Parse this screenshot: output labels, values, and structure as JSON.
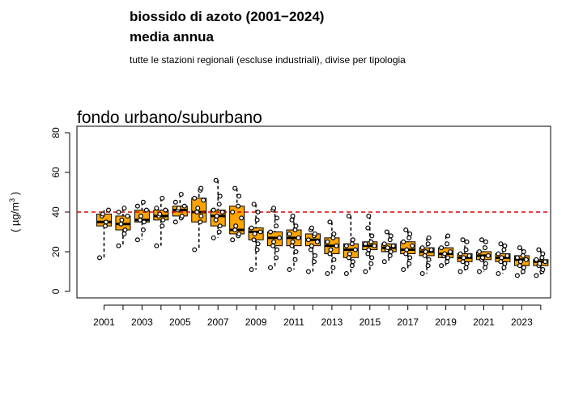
{
  "header": {
    "title": "biossido di azoto (2001−2024)",
    "subtitle": "media annua",
    "caption": "tutte le stazioni regionali (escluse industriali), divise per tipologia"
  },
  "chart_data": {
    "type": "boxplot",
    "title": "fondo urbano/suburbano",
    "xlabel": "",
    "ylabel_prefix": "( µg/m",
    "ylabel_sup": "3",
    "ylabel_suffix": " )",
    "ylim": [
      0,
      80
    ],
    "yticks": [
      0,
      20,
      40,
      60,
      80
    ],
    "xtick_labels": [
      "2001",
      "2003",
      "2005",
      "2007",
      "2009",
      "2011",
      "2013",
      "2015",
      "2017",
      "2019",
      "2021",
      "2023"
    ],
    "limit_value": 40,
    "colors": {
      "box": "#FFA500",
      "limit_line": "#DD0000",
      "point_fill": "#FFFFFF",
      "stroke": "#000000"
    },
    "grid": false,
    "years": [
      {
        "year": "2001",
        "q1": 33,
        "median": 35,
        "q3": 39,
        "wlow": 17,
        "whigh": 41,
        "points": [
          17,
          33,
          35,
          38,
          39,
          41
        ]
      },
      {
        "year": "2002",
        "q1": 31,
        "median": 34,
        "q3": 38,
        "wlow": 23,
        "whigh": 42,
        "points": [
          23,
          29,
          31,
          34,
          36,
          38,
          40,
          42
        ]
      },
      {
        "year": "2003",
        "q1": 35,
        "median": 36,
        "q3": 41,
        "wlow": 26,
        "whigh": 45,
        "points": [
          26,
          31,
          35,
          36,
          38,
          41,
          43,
          45
        ]
      },
      {
        "year": "2004",
        "q1": 36,
        "median": 38,
        "q3": 41,
        "wlow": 23,
        "whigh": 47,
        "points": [
          23,
          33,
          36,
          38,
          39,
          41,
          42,
          47
        ]
      },
      {
        "year": "2005",
        "q1": 38,
        "median": 41,
        "q3": 43,
        "wlow": 35,
        "whigh": 49,
        "points": [
          35,
          37,
          38,
          41,
          42,
          43,
          45,
          49
        ]
      },
      {
        "year": "2006",
        "q1": 35,
        "median": 40,
        "q3": 47,
        "wlow": 21,
        "whigh": 52,
        "points": [
          21,
          35,
          38,
          40,
          42,
          46,
          47,
          51,
          52
        ]
      },
      {
        "year": "2007",
        "q1": 33,
        "median": 38,
        "q3": 41,
        "wlow": 27,
        "whigh": 56,
        "points": [
          27,
          30,
          33,
          36,
          38,
          40,
          41,
          44,
          48,
          56
        ]
      },
      {
        "year": "2008",
        "q1": 29,
        "median": 31,
        "q3": 43,
        "wlow": 26,
        "whigh": 52,
        "points": [
          26,
          28,
          29,
          31,
          33,
          37,
          40,
          43,
          48,
          52
        ]
      },
      {
        "year": "2009",
        "q1": 26,
        "median": 30,
        "q3": 32,
        "wlow": 11,
        "whigh": 44,
        "points": [
          11,
          21,
          24,
          26,
          29,
          30,
          32,
          36,
          40,
          44
        ]
      },
      {
        "year": "2010",
        "q1": 23,
        "median": 27,
        "q3": 30,
        "wlow": 12,
        "whigh": 42,
        "points": [
          12,
          17,
          21,
          23,
          25,
          27,
          30,
          33,
          37,
          41,
          42
        ]
      },
      {
        "year": "2011",
        "q1": 23,
        "median": 27,
        "q3": 31,
        "wlow": 11,
        "whigh": 38,
        "points": [
          11,
          16,
          20,
          23,
          25,
          27,
          29,
          31,
          33,
          36,
          38
        ]
      },
      {
        "year": "2012",
        "q1": 23,
        "median": 26,
        "q3": 29,
        "wlow": 10,
        "whigh": 32,
        "points": [
          10,
          15,
          18,
          21,
          23,
          25,
          26,
          28,
          29,
          31,
          32
        ]
      },
      {
        "year": "2013",
        "q1": 19,
        "median": 23,
        "q3": 27,
        "wlow": 9,
        "whigh": 35,
        "points": [
          9,
          12,
          16,
          19,
          21,
          23,
          25,
          27,
          29,
          35
        ]
      },
      {
        "year": "2014",
        "q1": 17,
        "median": 21,
        "q3": 24,
        "wlow": 9,
        "whigh": 38,
        "points": [
          9,
          13,
          15,
          17,
          19,
          21,
          23,
          24,
          26,
          38
        ]
      },
      {
        "year": "2015",
        "q1": 21,
        "median": 23,
        "q3": 25,
        "wlow": 10,
        "whigh": 38,
        "points": [
          10,
          14,
          17,
          19,
          21,
          23,
          24,
          25,
          28,
          32,
          38
        ]
      },
      {
        "year": "2016",
        "q1": 20,
        "median": 22,
        "q3": 24,
        "wlow": 15,
        "whigh": 30,
        "points": [
          15,
          18,
          20,
          21,
          22,
          23,
          24,
          26,
          28,
          30
        ]
      },
      {
        "year": "2017",
        "q1": 19,
        "median": 21,
        "q3": 25,
        "wlow": 11,
        "whigh": 31,
        "points": [
          11,
          14,
          17,
          19,
          21,
          23,
          25,
          27,
          29,
          31
        ]
      },
      {
        "year": "2018",
        "q1": 18,
        "median": 20,
        "q3": 22,
        "wlow": 9,
        "whigh": 27,
        "points": [
          9,
          13,
          16,
          18,
          20,
          21,
          22,
          24,
          27
        ]
      },
      {
        "year": "2019",
        "q1": 17,
        "median": 19,
        "q3": 22,
        "wlow": 13,
        "whigh": 28,
        "points": [
          13,
          15,
          17,
          18,
          19,
          20,
          22,
          24,
          28
        ]
      },
      {
        "year": "2020",
        "q1": 15,
        "median": 17,
        "q3": 19,
        "wlow": 10,
        "whigh": 26,
        "points": [
          10,
          12,
          14,
          15,
          17,
          18,
          19,
          21,
          25,
          26
        ]
      },
      {
        "year": "2021",
        "q1": 16,
        "median": 18,
        "q3": 20,
        "wlow": 10,
        "whigh": 26,
        "points": [
          10,
          12,
          14,
          16,
          17,
          18,
          20,
          22,
          25,
          26
        ]
      },
      {
        "year": "2022",
        "q1": 15,
        "median": 17,
        "q3": 19,
        "wlow": 9,
        "whigh": 24,
        "points": [
          9,
          12,
          14,
          15,
          17,
          18,
          19,
          21,
          23,
          24
        ]
      },
      {
        "year": "2023",
        "q1": 13,
        "median": 16,
        "q3": 18,
        "wlow": 8,
        "whigh": 22,
        "points": [
          8,
          10,
          12,
          13,
          15,
          16,
          17,
          18,
          20,
          22
        ]
      },
      {
        "year": "2024",
        "q1": 13,
        "median": 15,
        "q3": 16,
        "wlow": 8,
        "whigh": 21,
        "points": [
          8,
          10,
          11,
          13,
          14,
          15,
          16,
          17,
          19,
          21
        ]
      }
    ]
  }
}
